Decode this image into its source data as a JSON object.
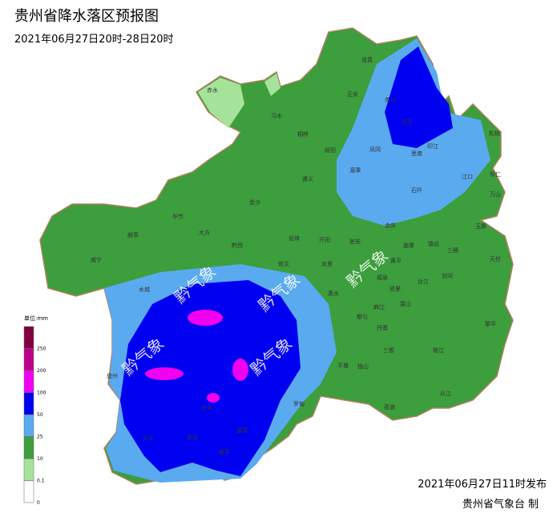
{
  "header": {
    "title": "贵州省降水落区预报图",
    "subtitle": "2021年06月27日20时-28日20时"
  },
  "legend": {
    "unit": "单位:mm",
    "labels": [
      "0",
      "0.1",
      "10",
      "25",
      "50",
      "100",
      "200",
      "250"
    ],
    "colors": [
      "#ffffff",
      "#a6e39a",
      "#3c9e3c",
      "#5aaaf0",
      "#0000f0",
      "#f000f0",
      "#c0008c",
      "#800040"
    ]
  },
  "watermark": "黔气象",
  "counties": [
    "赤水",
    "习水",
    "桐梓",
    "道真",
    "正安",
    "务川",
    "沿河",
    "松桃",
    "印江",
    "思南",
    "凤冈",
    "绥阳",
    "湄潭",
    "遵义",
    "金沙",
    "石阡",
    "江口",
    "铜仁",
    "万山",
    "玉屏",
    "余庆",
    "镇远",
    "施秉",
    "黄平",
    "三穗",
    "天柱",
    "剑河",
    "台江",
    "凯里",
    "雷山",
    "麻江",
    "丹寨",
    "三都",
    "榕江",
    "黎平",
    "从江",
    "荔波",
    "独山",
    "平塘",
    "都匀",
    "福泉",
    "瓮安",
    "龙里",
    "开阳",
    "息烽",
    "修文",
    "惠水",
    "罗甸",
    "黔西",
    "大方",
    "毕节",
    "赫章",
    "威宁",
    "水城",
    "盘州",
    "兴义",
    "安龙",
    "贞丰",
    "望谟",
    "册亨"
  ],
  "footer": {
    "issued": "2021年06月27日11时发布",
    "maker": "贵州省气象台 制"
  }
}
